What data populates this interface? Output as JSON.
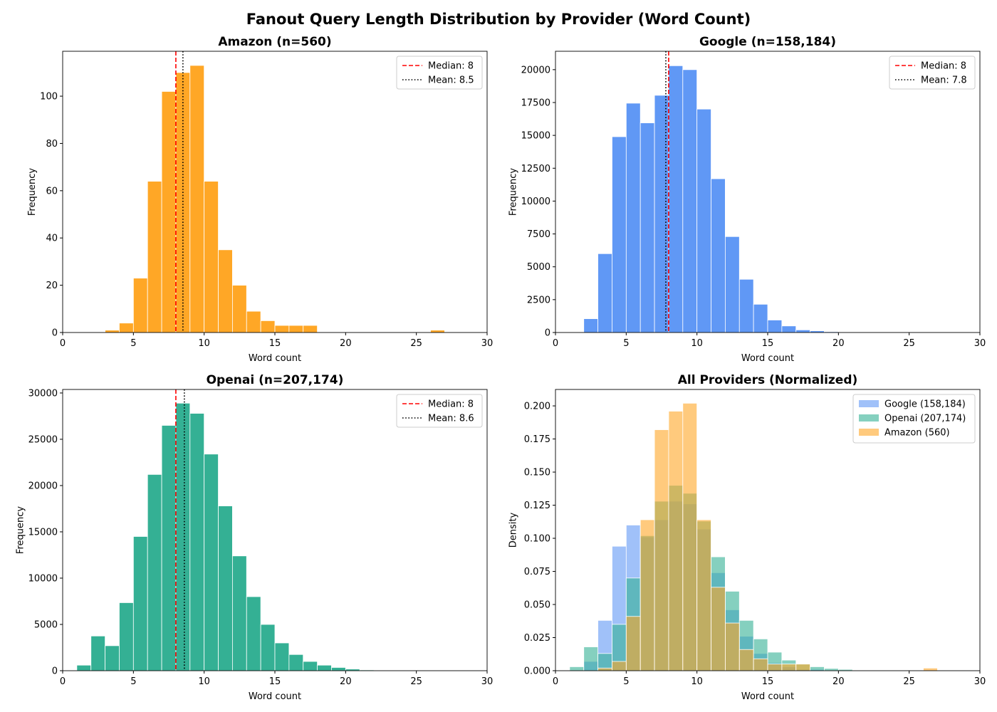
{
  "title": "Fanout Query Length Distribution by Provider (Word Count)",
  "chart_data": [
    {
      "type": "bar",
      "title": "Amazon (n=560)",
      "xlabel": "Word count",
      "ylabel": "Frequency",
      "xlim": [
        0,
        30
      ],
      "ylim": [
        0,
        119
      ],
      "xticks": [
        0,
        5,
        10,
        15,
        20,
        25,
        30
      ],
      "yticks": [
        0,
        20,
        40,
        60,
        80,
        100
      ],
      "grid": false,
      "color": "#ffa726",
      "bin_edges_start": [
        3,
        4,
        5,
        6,
        7,
        8,
        9,
        10,
        11,
        12,
        13,
        14,
        15,
        16,
        17,
        26
      ],
      "bin_width": 1,
      "values": [
        1,
        4,
        23,
        64,
        102,
        110,
        113,
        64,
        35,
        20,
        9,
        5,
        3,
        3,
        3,
        1
      ],
      "lines": [
        {
          "label": "Median: 8",
          "x": 8,
          "color": "#ff0000",
          "style": "dashed"
        },
        {
          "label": "Mean: 8.5",
          "x": 8.5,
          "color": "#000000",
          "style": "dotted"
        }
      ],
      "legend": "top-right"
    },
    {
      "type": "bar",
      "title": "Google (n=158,184)",
      "xlabel": "Word count",
      "ylabel": "Frequency",
      "xlim": [
        0,
        30
      ],
      "ylim": [
        0,
        21400
      ],
      "xticks": [
        0,
        5,
        10,
        15,
        20,
        25,
        30
      ],
      "yticks": [
        0,
        2500,
        5000,
        7500,
        10000,
        12500,
        15000,
        17500,
        20000
      ],
      "grid": false,
      "color": "#6098f5",
      "bin_edges_start": [
        2,
        3,
        4,
        5,
        6,
        7,
        8,
        9,
        10,
        11,
        12,
        13,
        14,
        15,
        16,
        17,
        18,
        19,
        20
      ],
      "bin_width": 1,
      "values": [
        1050,
        6000,
        14900,
        17450,
        15950,
        18050,
        20300,
        20000,
        17000,
        11700,
        7300,
        4050,
        2150,
        950,
        500,
        200,
        130,
        60,
        20
      ],
      "lines": [
        {
          "label": "Median: 8",
          "x": 8,
          "color": "#ff0000",
          "style": "dashed"
        },
        {
          "label": "Mean: 7.8",
          "x": 7.8,
          "color": "#000000",
          "style": "dotted"
        }
      ],
      "legend": "top-right"
    },
    {
      "type": "bar",
      "title": "Openai (n=207,174)",
      "xlabel": "Word count",
      "ylabel": "Frequency",
      "xlim": [
        0,
        30
      ],
      "ylim": [
        0,
        30380
      ],
      "xticks": [
        0,
        5,
        10,
        15,
        20,
        25,
        30
      ],
      "yticks": [
        0,
        5000,
        10000,
        15000,
        20000,
        25000,
        30000
      ],
      "grid": false,
      "color": "#34b094",
      "bin_edges_start": [
        1,
        2,
        3,
        4,
        5,
        6,
        7,
        8,
        9,
        10,
        11,
        12,
        13,
        14,
        15,
        16,
        17,
        18,
        19,
        20,
        21
      ],
      "bin_width": 1,
      "values": [
        600,
        3750,
        2700,
        7350,
        14500,
        21200,
        26500,
        28900,
        27800,
        23400,
        17800,
        12400,
        8000,
        5000,
        3000,
        1750,
        1000,
        600,
        350,
        180,
        80
      ],
      "lines": [
        {
          "label": "Median: 8",
          "x": 8,
          "color": "#ff0000",
          "style": "dashed"
        },
        {
          "label": "Mean: 8.6",
          "x": 8.6,
          "color": "#000000",
          "style": "dotted"
        }
      ],
      "legend": "top-right"
    },
    {
      "type": "bar",
      "title": "All Providers (Normalized)",
      "xlabel": "Word count",
      "ylabel": "Density",
      "xlim": [
        0,
        30
      ],
      "ylim": [
        0,
        0.2124
      ],
      "xticks": [
        0,
        5,
        10,
        15,
        20,
        25,
        30
      ],
      "yticks": [
        0,
        0.025,
        0.05,
        0.075,
        0.1,
        0.125,
        0.15,
        0.175,
        0.2
      ],
      "ytick_labels": [
        "0.000",
        "0.025",
        "0.050",
        "0.075",
        "0.100",
        "0.125",
        "0.150",
        "0.175",
        "0.200"
      ],
      "grid": false,
      "bin_width": 1,
      "legend": "top-right",
      "series": [
        {
          "name": "Google (158,184)",
          "color": "#6098f5",
          "bin_edges_start": [
            2,
            3,
            4,
            5,
            6,
            7,
            8,
            9,
            10,
            11,
            12,
            13,
            14,
            15,
            16,
            17,
            18,
            19
          ],
          "values": [
            0.007,
            0.038,
            0.094,
            0.11,
            0.101,
            0.114,
            0.128,
            0.126,
            0.107,
            0.074,
            0.046,
            0.026,
            0.013,
            0.006,
            0.003,
            0.001,
            0.001,
            0.0004
          ]
        },
        {
          "name": "Openai (207,174)",
          "color": "#34b094",
          "bin_edges_start": [
            1,
            2,
            3,
            4,
            5,
            6,
            7,
            8,
            9,
            10,
            11,
            12,
            13,
            14,
            15,
            16,
            17,
            18,
            19,
            20,
            21
          ],
          "values": [
            0.003,
            0.018,
            0.013,
            0.035,
            0.07,
            0.102,
            0.128,
            0.14,
            0.134,
            0.113,
            0.086,
            0.06,
            0.038,
            0.024,
            0.014,
            0.008,
            0.005,
            0.003,
            0.0017,
            0.001,
            0.0004
          ]
        },
        {
          "name": "Amazon (560)",
          "color": "#ffa726",
          "bin_edges_start": [
            3,
            4,
            5,
            6,
            7,
            8,
            9,
            10,
            11,
            12,
            13,
            14,
            15,
            16,
            17,
            26
          ],
          "values": [
            0.002,
            0.007,
            0.041,
            0.114,
            0.182,
            0.196,
            0.202,
            0.114,
            0.063,
            0.036,
            0.016,
            0.009,
            0.005,
            0.005,
            0.005,
            0.002
          ]
        }
      ]
    }
  ]
}
